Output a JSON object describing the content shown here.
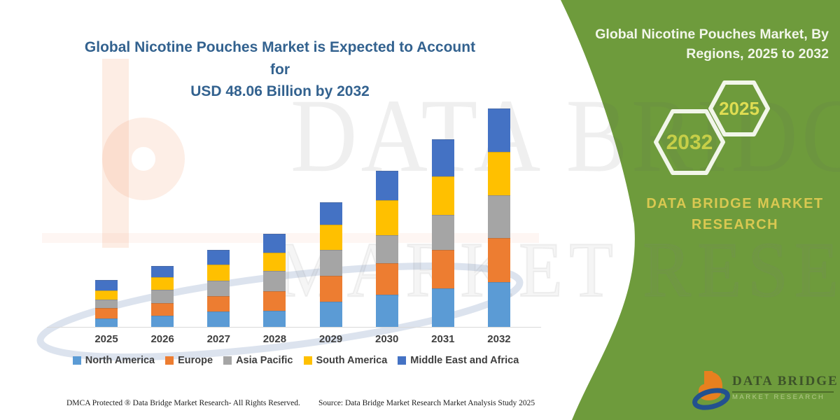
{
  "title": {
    "line1": "Global Nicotine Pouches Market is Expected to Account for",
    "line2": "USD 48.06 Billion by 2032"
  },
  "chart_data": {
    "type": "bar",
    "stacked": true,
    "title": "Global Nicotine Pouches Market is Expected to Account for USD 48.06 Billion by 2032",
    "unit": "USD Billion",
    "categories": [
      "2025",
      "2026",
      "2027",
      "2028",
      "2029",
      "2030",
      "2031",
      "2032"
    ],
    "series": [
      {
        "name": "North America",
        "color": "#5b9bd5",
        "values": [
          1.85,
          2.45,
          3.35,
          3.5,
          5.5,
          7.1,
          8.45,
          9.85
        ]
      },
      {
        "name": "Europe",
        "color": "#ed7d31",
        "values": [
          2.25,
          2.85,
          3.5,
          4.35,
          5.8,
          6.9,
          8.45,
          9.75
        ]
      },
      {
        "name": "Asia Pacific",
        "color": "#a5a5a5",
        "values": [
          1.95,
          2.8,
          3.3,
          4.45,
          5.6,
          6.2,
          7.7,
          9.3
        ]
      },
      {
        "name": "South America",
        "color": "#ffc000",
        "values": [
          1.95,
          2.9,
          3.6,
          4.1,
          5.6,
          7.7,
          8.45,
          9.6
        ]
      },
      {
        "name": "Middle East and Africa",
        "color": "#4472c4",
        "values": [
          2.25,
          2.4,
          3.15,
          4.1,
          4.85,
          6.5,
          8.2,
          9.56
        ]
      }
    ],
    "totals": [
      10.25,
      13.4,
      16.9,
      20.5,
      27.35,
      34.4,
      41.25,
      48.06
    ],
    "ylim": [
      0,
      48.06
    ],
    "grid": false,
    "legend_position": "bottom",
    "axis_color": "#d9d9d9"
  },
  "side_panel": {
    "bg_color": "#6e9b3c",
    "heading": "Global Nicotine Pouches Market, By Regions, 2025 to 2032",
    "hex_large_label": "2032",
    "hex_small_label": "2025",
    "brand": "DATA BRIDGE MARKET RESEARCH"
  },
  "logo": {
    "name": "DATA BRIDGE",
    "tagline": "MARKET RESEARCH"
  },
  "watermark": {
    "line1": "DATA BRIDGE",
    "line2": "MARKET RESEARCH"
  },
  "footer": {
    "left": "DMCA Protected ® Data Bridge Market Research-  All Rights Reserved.",
    "right": "Source: Data Bridge Market Research  Market Analysis Study 2025"
  }
}
